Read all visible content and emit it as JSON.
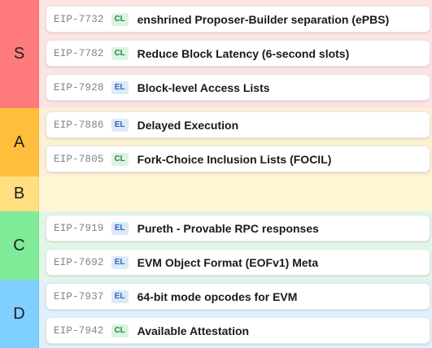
{
  "tiers": [
    {
      "label": "S",
      "label_color": "#ff7b7b",
      "row_color": "#fde3e3",
      "items": [
        {
          "eip": "EIP-7732",
          "layer": "CL",
          "title": "enshrined Proposer-Builder separation (ePBS)"
        },
        {
          "eip": "EIP-7782",
          "layer": "CL",
          "title": "Reduce Block Latency (6-second slots)"
        },
        {
          "eip": "EIP-7928",
          "layer": "EL",
          "title": "Block-level Access Lists"
        }
      ]
    },
    {
      "label": "A",
      "label_color": "#ffbf3c",
      "row_color": "#fdf0d3",
      "items": [
        {
          "eip": "EIP-7886",
          "layer": "EL",
          "title": "Delayed Execution"
        },
        {
          "eip": "EIP-7805",
          "layer": "CL",
          "title": "Fork-Choice Inclusion Lists (FOCIL)"
        }
      ]
    },
    {
      "label": "B",
      "label_color": "#ffdf80",
      "row_color": "#fff6d6",
      "items": []
    },
    {
      "label": "C",
      "label_color": "#7fea98",
      "row_color": "#e0f7e7",
      "items": [
        {
          "eip": "EIP-7919",
          "layer": "EL",
          "title": "Pureth - Provable RPC responses"
        },
        {
          "eip": "EIP-7692",
          "layer": "EL",
          "title": "EVM Object Format (EOFv1) Meta"
        }
      ]
    },
    {
      "label": "D",
      "label_color": "#7fcfff",
      "row_color": "#e1f0fb",
      "items": [
        {
          "eip": "EIP-7937",
          "layer": "EL",
          "title": "64-bit mode opcodes for EVM"
        },
        {
          "eip": "EIP-7942",
          "layer": "CL",
          "title": "Available Attestation"
        }
      ]
    }
  ]
}
